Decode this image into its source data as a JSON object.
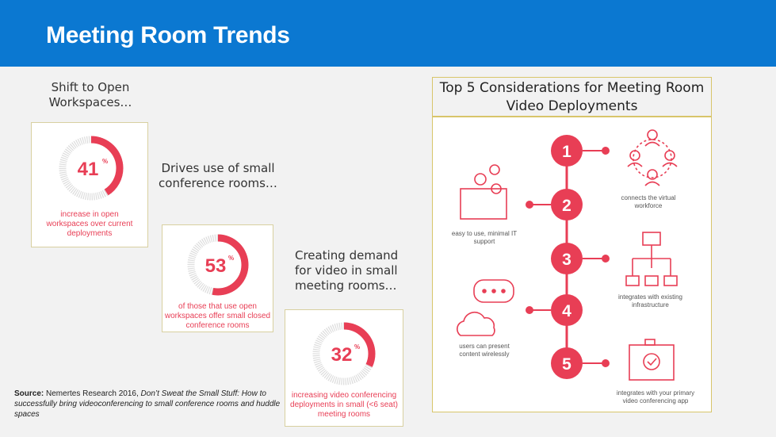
{
  "header": {
    "title": "Meeting Room Trends"
  },
  "captions": {
    "shift": "Shift to Open Workspaces…",
    "drives": "Drives use of small conference rooms…",
    "creating": "Creating demand for video in small meeting rooms…"
  },
  "stats": [
    {
      "value": "41",
      "suffix": "%",
      "percent": 41,
      "text": "increase in open workspaces over current deployments"
    },
    {
      "value": "53",
      "suffix": "%",
      "percent": 53,
      "text": "of those that use open workspaces offer small closed conference rooms"
    },
    {
      "value": "32",
      "suffix": "%",
      "percent": 32,
      "text": "increasing video conferencing deployments in small (<6 seat) meeting rooms"
    }
  ],
  "source": {
    "label": "Source:",
    "text": "Nemertes Research 2016,",
    "italic": "Don’t Sweat the Small Stuff: How to successfully bring videoconferencing to small conference rooms and huddle spaces"
  },
  "considerations": {
    "title": "Top 5 Considerations for Meeting Room Video Deployments",
    "numbers": [
      "1",
      "2",
      "3",
      "4",
      "5"
    ],
    "labels": {
      "easy": "easy to use, minimal IT support",
      "connects": "connects the virtual workforce",
      "integrates_infra": "integrates with existing infrastructure",
      "present": "users can present content wirelessly",
      "integrates_app": "integrates with your primary video conferencing app"
    }
  },
  "colors": {
    "header": "#0b78d1",
    "accent": "#e83e55"
  }
}
